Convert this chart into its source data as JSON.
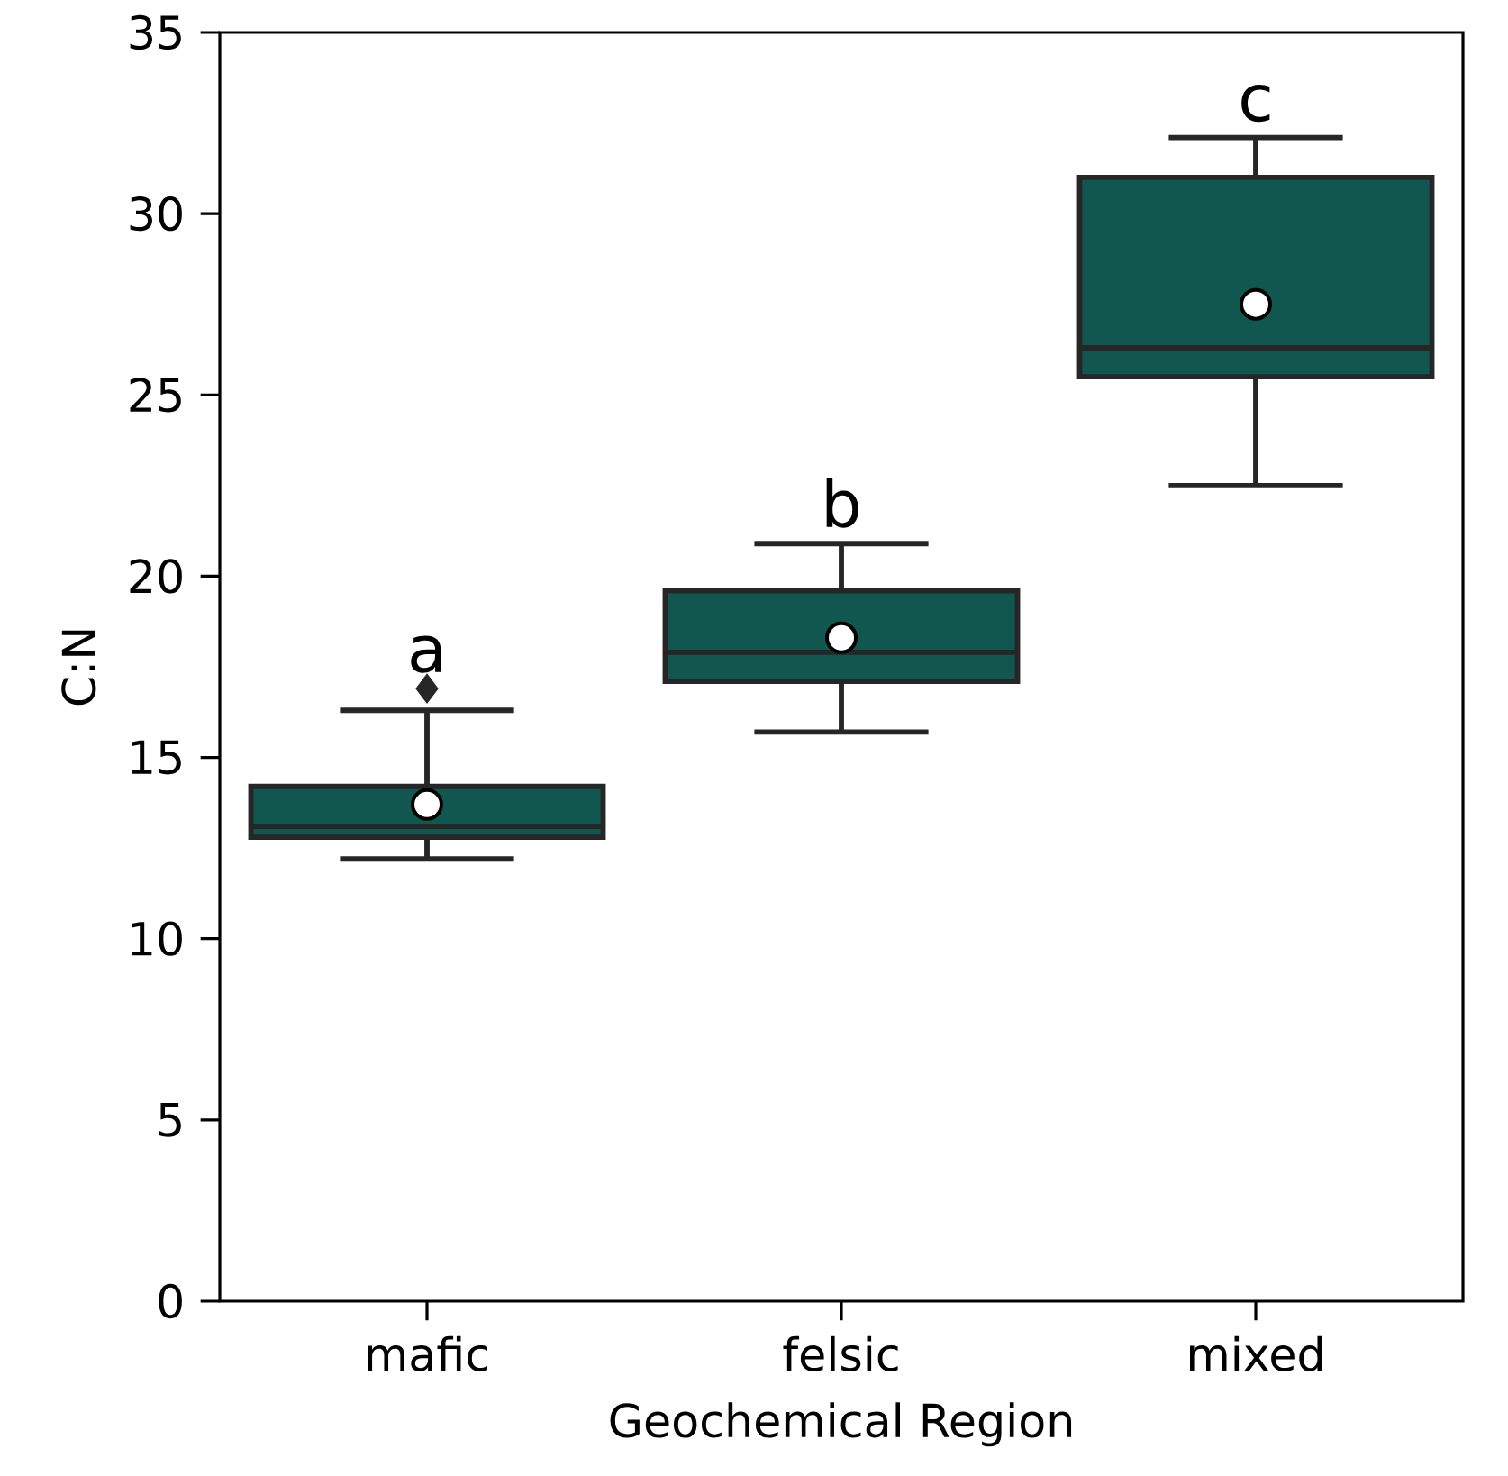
{
  "chart_data": {
    "type": "box",
    "xlabel": "Geochemical Region",
    "ylabel": "C:N",
    "categories": [
      "mafic",
      "felsic",
      "mixed"
    ],
    "color": "#12574f",
    "boxes": [
      {
        "low": 12.2,
        "q1": 12.8,
        "median": 13.1,
        "q3": 14.2,
        "high": 16.3,
        "mean": 13.7,
        "outliers": [
          16.9
        ]
      },
      {
        "low": 15.7,
        "q1": 17.1,
        "median": 17.9,
        "q3": 19.6,
        "high": 20.9,
        "mean": 18.3
      },
      {
        "low": 22.5,
        "q1": 25.5,
        "median": 26.3,
        "q3": 31.0,
        "high": 32.1,
        "mean": 27.5
      }
    ],
    "ylim": [
      0,
      35
    ],
    "yticks": [
      0,
      5,
      10,
      15,
      20,
      25,
      30,
      35
    ],
    "annotations": [
      "a",
      "b",
      "c"
    ]
  }
}
